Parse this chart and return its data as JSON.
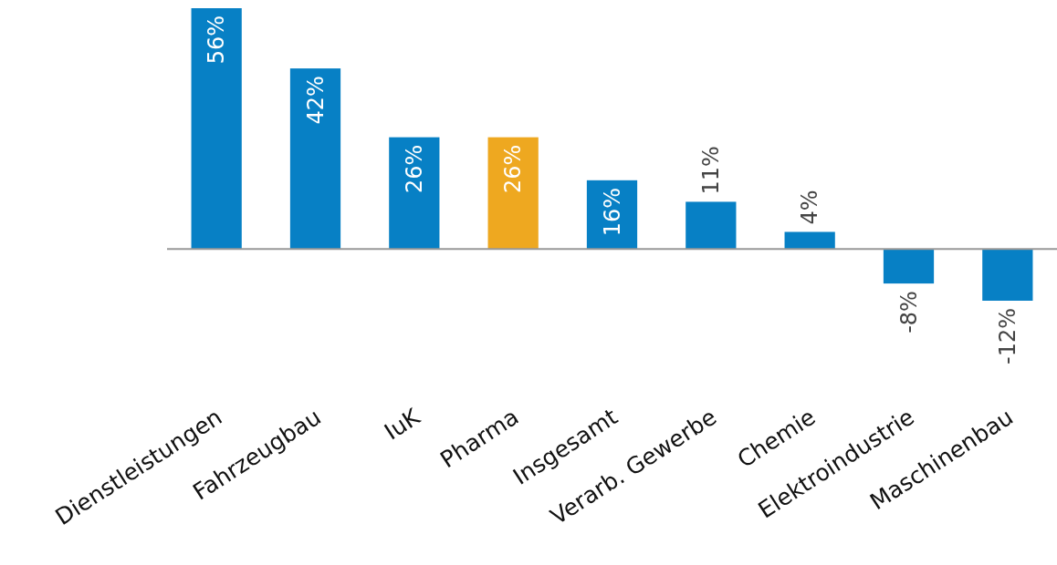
{
  "chart_data": {
    "type": "bar",
    "categories": [
      "Dienstleistungen",
      "Fahrzeugbau",
      "IuK",
      "Pharma",
      "Insgesamt",
      "Verarb. Gewerbe",
      "Chemie",
      "Elektroindustrie",
      "Maschinenbau"
    ],
    "values": [
      56,
      42,
      26,
      26,
      16,
      11,
      4,
      -8,
      -12
    ],
    "colors": [
      "#0780c5",
      "#0780c5",
      "#0780c5",
      "#eea820",
      "#0780c5",
      "#0780c5",
      "#0780c5",
      "#0780c5",
      "#0780c5"
    ],
    "value_labels": [
      "56%",
      "42%",
      "26%",
      "26%",
      "16%",
      "11%",
      "4%",
      "-8%",
      "-12%"
    ]
  }
}
